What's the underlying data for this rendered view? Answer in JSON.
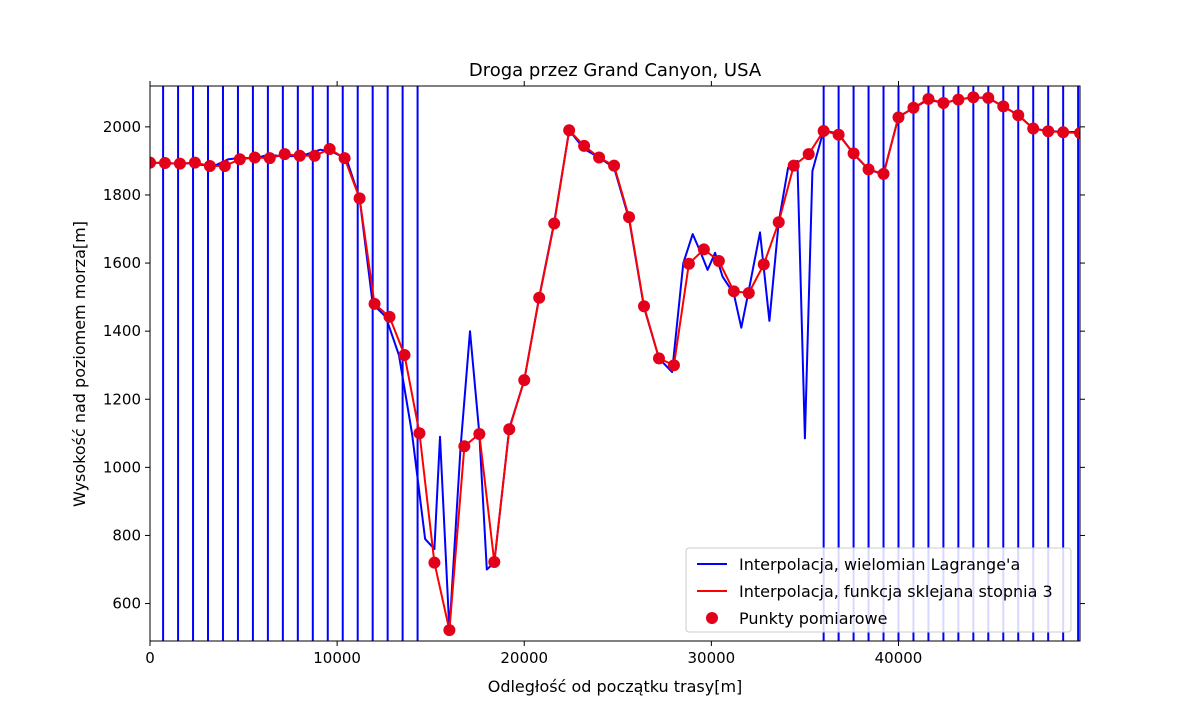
{
  "chart_data": {
    "type": "line",
    "title": "Droga przez Grand Canyon, USA",
    "xlabel": "Odległość od początku trasy[m]",
    "ylabel": "Wysokość nad poziomem morza[m]",
    "xlim": [
      0,
      49700
    ],
    "ylim": [
      490,
      2120
    ],
    "xticks": [
      0,
      10000,
      20000,
      30000,
      40000
    ],
    "yticks": [
      600,
      800,
      1000,
      1200,
      1400,
      1600,
      1800,
      2000
    ],
    "grid": false,
    "legend_position": "lower-right",
    "series": [
      {
        "name": "Interpolacja, wielomian Lagrange'a",
        "style": "line",
        "color": "#0000ff",
        "x": [
          0,
          700,
          1400,
          2100,
          2800,
          3500,
          4200,
          4900,
          5600,
          6300,
          7000,
          7700,
          8400,
          9100,
          9800,
          10500,
          11200,
          11900,
          12600,
          13300,
          14000,
          14700,
          15200,
          15500,
          16000,
          16600,
          17100,
          17600,
          18000,
          18400,
          19200,
          20000,
          20800,
          21600,
          22400,
          23200,
          24000,
          24800,
          25600,
          26400,
          27200,
          27900,
          28500,
          29000,
          29400,
          29800,
          30200,
          30600,
          31200,
          31600,
          32000,
          32600,
          33100,
          33600,
          34100,
          34600,
          35000,
          35400,
          36000,
          36800,
          37600,
          38400,
          39200,
          40000,
          40800,
          41600,
          42400,
          43200,
          44000,
          44800,
          45600,
          46400,
          47200,
          48000,
          48800,
          49700
        ],
        "y": [
          1895,
          1894,
          1892,
          1893,
          1888,
          1887,
          1905,
          1909,
          1907,
          1918,
          1914,
          1914,
          1920,
          1933,
          1925,
          1906,
          1790,
          1480,
          1442,
          1330,
          1100,
          790,
          760,
          1090,
          520,
          1060,
          1400,
          1100,
          700,
          720,
          1115,
          1255,
          1500,
          1720,
          1990,
          1935,
          1910,
          1880,
          1730,
          1470,
          1320,
          1280,
          1600,
          1685,
          1635,
          1580,
          1630,
          1560,
          1510,
          1410,
          1520,
          1690,
          1430,
          1720,
          1880,
          1900,
          1085,
          1870,
          1990,
          1980,
          1920,
          1875,
          1860,
          2030,
          2055,
          2080,
          2070,
          2080,
          2087,
          2084,
          2060,
          2035,
          1995,
          1988,
          1985,
          1985
        ]
      },
      {
        "name": "Interpolacja, funkcja sklejana stopnia 3",
        "style": "line",
        "color": "#ff0000",
        "x": [
          0,
          800,
          1600,
          2400,
          3200,
          4000,
          4800,
          5600,
          6400,
          7200,
          8000,
          8800,
          9600,
          10400,
          11200,
          12000,
          12800,
          13600,
          14400,
          15200,
          16000,
          16800,
          17600,
          18400,
          19200,
          20000,
          20800,
          21600,
          22400,
          23200,
          24000,
          24800,
          25600,
          26400,
          27200,
          28000,
          28800,
          29600,
          30400,
          31200,
          32000,
          32800,
          33600,
          34400,
          35200,
          36000,
          36800,
          37600,
          38400,
          39200,
          40000,
          40800,
          41600,
          42400,
          43200,
          44000,
          44800,
          45600,
          46400,
          47200,
          48000,
          48800,
          49700
        ],
        "y": [
          1895,
          1894,
          1892,
          1895,
          1885,
          1885,
          1905,
          1910,
          1908,
          1920,
          1915,
          1915,
          1935,
          1908,
          1790,
          1480,
          1442,
          1330,
          1100,
          720,
          522,
          1062,
          1098,
          722,
          1112,
          1256,
          1498,
          1716,
          1990,
          1944,
          1910,
          1886,
          1735,
          1473,
          1320,
          1300,
          1598,
          1640,
          1606,
          1517,
          1512,
          1596,
          1720,
          1886,
          1920,
          1988,
          1977,
          1922,
          1875,
          1862,
          2028,
          2056,
          2082,
          2070,
          2080,
          2087,
          2085,
          2060,
          2034,
          1995,
          1987,
          1984,
          1982
        ]
      },
      {
        "name": "Punkty pomiarowe",
        "style": "scatter",
        "color": "#e3001b",
        "x": [
          0,
          800,
          1600,
          2400,
          3200,
          4000,
          4800,
          5600,
          6400,
          7200,
          8000,
          8800,
          9600,
          10400,
          11200,
          12000,
          12800,
          13600,
          14400,
          15200,
          16000,
          16800,
          17600,
          18400,
          19200,
          20000,
          20800,
          21600,
          22400,
          23200,
          24000,
          24800,
          25600,
          26400,
          27200,
          28000,
          28800,
          29600,
          30400,
          31200,
          32000,
          32800,
          33600,
          34400,
          35200,
          36000,
          36800,
          37600,
          38400,
          39200,
          40000,
          40800,
          41600,
          42400,
          43200,
          44000,
          44800,
          45600,
          46400,
          47200,
          48000,
          48800,
          49700
        ],
        "y": [
          1895,
          1894,
          1892,
          1895,
          1885,
          1885,
          1905,
          1910,
          1908,
          1920,
          1915,
          1915,
          1935,
          1908,
          1790,
          1480,
          1442,
          1330,
          1100,
          720,
          522,
          1062,
          1098,
          722,
          1112,
          1256,
          1498,
          1716,
          1990,
          1944,
          1910,
          1886,
          1735,
          1473,
          1320,
          1300,
          1598,
          1640,
          1606,
          1517,
          1512,
          1596,
          1720,
          1886,
          1920,
          1988,
          1977,
          1922,
          1875,
          1862,
          2028,
          2056,
          2082,
          2070,
          2080,
          2087,
          2085,
          2060,
          2034,
          1995,
          1987,
          1984,
          1982
        ]
      }
    ]
  }
}
